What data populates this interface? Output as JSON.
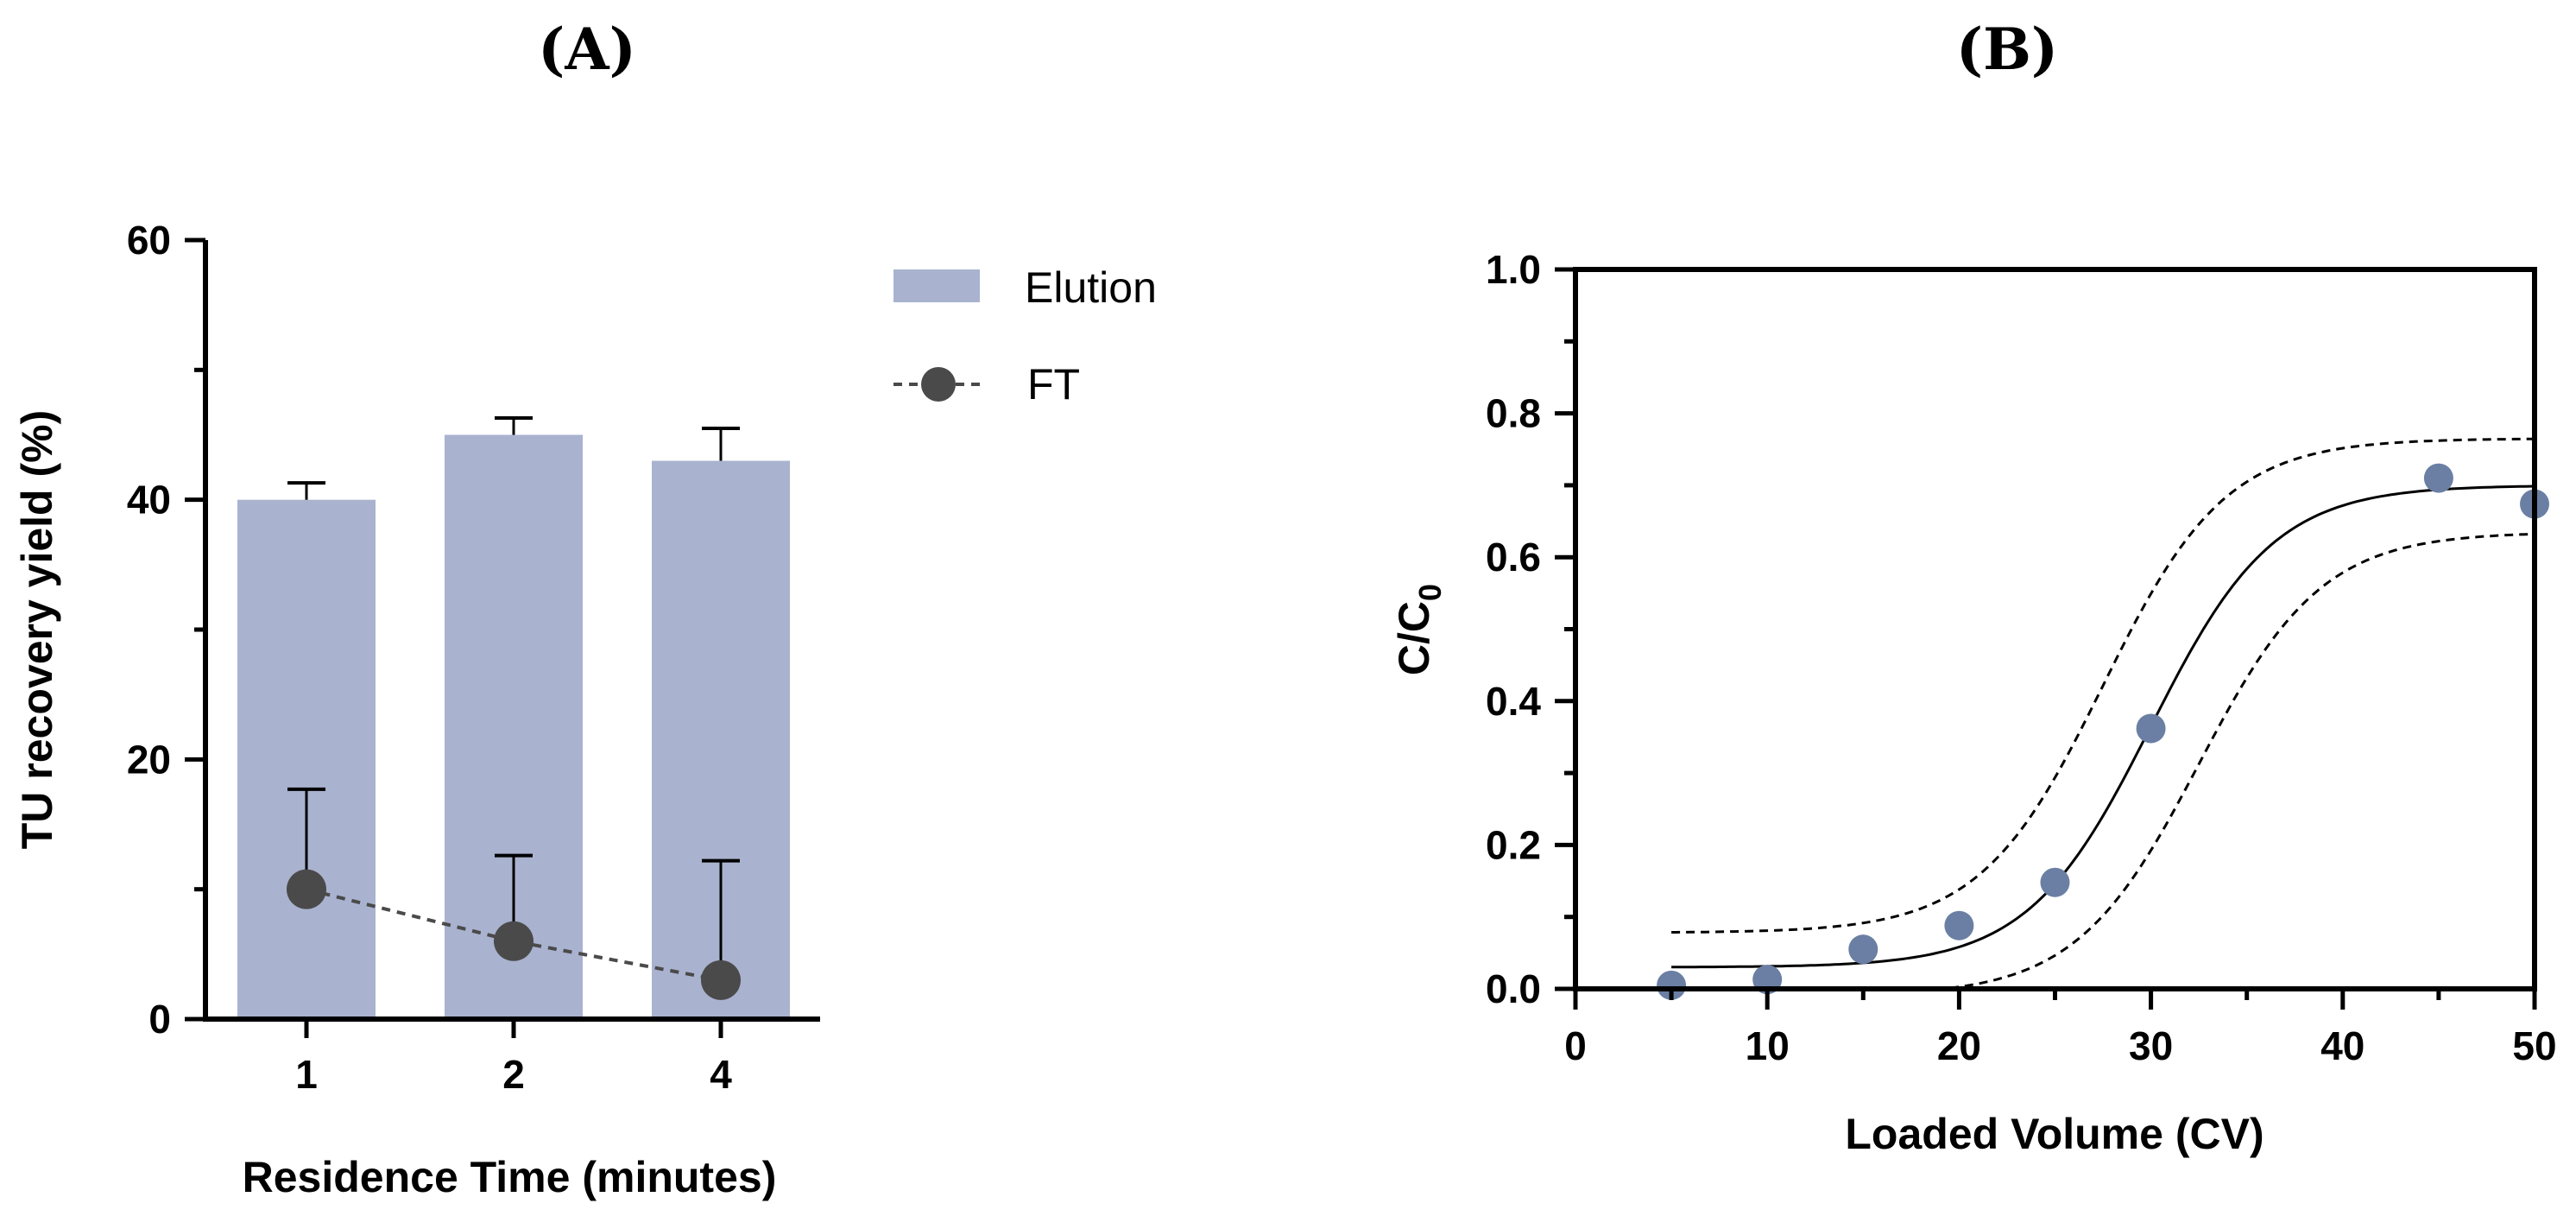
{
  "chart_data": [
    {
      "panel": "(A)",
      "type": "bar",
      "xlabel": "Residence Time (minutes)",
      "ylabel": "TU recovery yield (%)",
      "ylim": [
        0,
        60
      ],
      "yticks": [
        0,
        20,
        40,
        60
      ],
      "categories": [
        "1",
        "2",
        "4"
      ],
      "series": [
        {
          "name": "Elution",
          "type": "bar",
          "values": [
            40,
            45,
            43
          ],
          "error": [
            1.3,
            1.3,
            2.5
          ],
          "color": "#a9b3cf"
        },
        {
          "name": "FT",
          "type": "line-dashed-markers",
          "values": [
            10,
            6,
            3
          ],
          "error": [
            7.7,
            6.6,
            9.2
          ],
          "color": "#4a4a4a"
        }
      ]
    },
    {
      "panel": "(B)",
      "type": "scatter",
      "xlabel": "Loaded Volume (CV)",
      "ylabel": "C/C0",
      "ylabel_main": "C/C",
      "ylabel_sub": "0",
      "xlim": [
        0,
        50
      ],
      "ylim": [
        0,
        1.0
      ],
      "xticks": [
        "0",
        "10",
        "20",
        "30",
        "40",
        "50"
      ],
      "yticks": [
        "0.0",
        "0.2",
        "0.4",
        "0.6",
        "0.8",
        "1.0"
      ],
      "points": {
        "x": [
          5,
          10,
          15,
          20,
          25,
          30,
          45,
          50
        ],
        "y": [
          0.005,
          0.013,
          0.055,
          0.088,
          0.148,
          0.362,
          0.71,
          0.674
        ]
      },
      "fit_curve": {
        "style": "solid",
        "baseline": 0.03,
        "top": 0.7,
        "midpoint": 30,
        "slope": 3.2
      },
      "confidence_band_upper": {
        "style": "dashed",
        "baseline": 0.078,
        "top": 0.765,
        "midpoint": 27.5,
        "slope": 3.2
      },
      "confidence_band_lower": {
        "style": "dashed",
        "baseline": -0.01,
        "top": 0.635,
        "midpoint": 32.5,
        "slope": 3.2
      },
      "point_color": "#6a7fa3"
    }
  ]
}
